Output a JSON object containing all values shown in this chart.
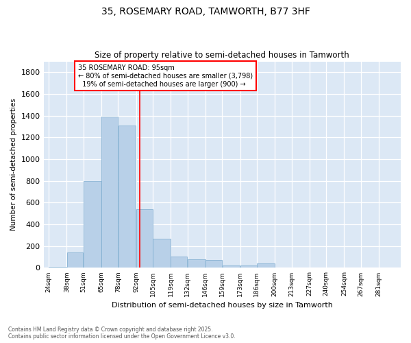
{
  "title1": "35, ROSEMARY ROAD, TAMWORTH, B77 3HF",
  "title2": "Size of property relative to semi-detached houses in Tamworth",
  "xlabel": "Distribution of semi-detached houses by size in Tamworth",
  "ylabel": "Number of semi-detached properties",
  "footnote1": "Contains HM Land Registry data © Crown copyright and database right 2025.",
  "footnote2": "Contains public sector information licensed under the Open Government Licence v3.0.",
  "annotation_title": "35 ROSEMARY ROAD: 95sqm",
  "annotation_line1": "← 80% of semi-detached houses are smaller (3,798)",
  "annotation_line2": "19% of semi-detached houses are larger (900) →",
  "property_size": 95,
  "bar_color": "#b8d0e8",
  "bar_edge_color": "#7aaace",
  "vline_color": "red",
  "background_color": "#dce8f5",
  "ylim": [
    0,
    1900
  ],
  "yticks": [
    0,
    200,
    400,
    600,
    800,
    1000,
    1200,
    1400,
    1600,
    1800
  ],
  "bin_edges": [
    24,
    38,
    51,
    65,
    78,
    92,
    105,
    119,
    132,
    146,
    159,
    173,
    186,
    200,
    213,
    227,
    240,
    254,
    267,
    281,
    294
  ],
  "bar_heights": [
    10,
    140,
    800,
    1390,
    1310,
    540,
    265,
    105,
    80,
    75,
    22,
    22,
    42,
    5,
    0,
    4,
    0,
    0,
    0,
    4
  ]
}
